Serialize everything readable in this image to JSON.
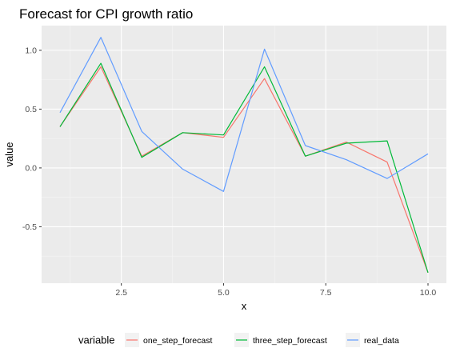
{
  "chart_data": {
    "type": "line",
    "title": "Forecast for CPI growth ratio",
    "xlabel": "x",
    "ylabel": "value",
    "xlim": [
      0.55,
      10.45
    ],
    "ylim": [
      -0.98,
      1.21
    ],
    "x_ticks": [
      2.5,
      5.0,
      7.5,
      10.0
    ],
    "x_tick_labels": [
      "2.5",
      "5.0",
      "7.5",
      "10.0"
    ],
    "y_ticks": [
      1.0,
      0.5,
      0.0,
      -0.5
    ],
    "y_tick_labels": [
      "1.0",
      "0.5",
      "0.0",
      "-0.5"
    ],
    "grid": true,
    "legend_position": "bottom",
    "legend_title": "variable",
    "x": [
      1,
      2,
      3,
      4,
      5,
      6,
      7,
      8,
      9,
      10
    ],
    "series": [
      {
        "name": "one_step_forecast",
        "color": "#F8766D",
        "values": [
          0.35,
          0.86,
          0.1,
          0.3,
          0.26,
          0.76,
          0.1,
          0.22,
          0.05,
          -0.89
        ]
      },
      {
        "name": "three_step_forecast",
        "color": "#00BA38",
        "values": [
          0.35,
          0.89,
          0.09,
          0.3,
          0.28,
          0.86,
          0.1,
          0.21,
          0.23,
          -0.89
        ]
      },
      {
        "name": "real_data",
        "color": "#619CFF",
        "values": [
          0.47,
          1.11,
          0.31,
          -0.01,
          -0.2,
          1.01,
          0.19,
          0.07,
          -0.09,
          0.12
        ]
      }
    ]
  }
}
